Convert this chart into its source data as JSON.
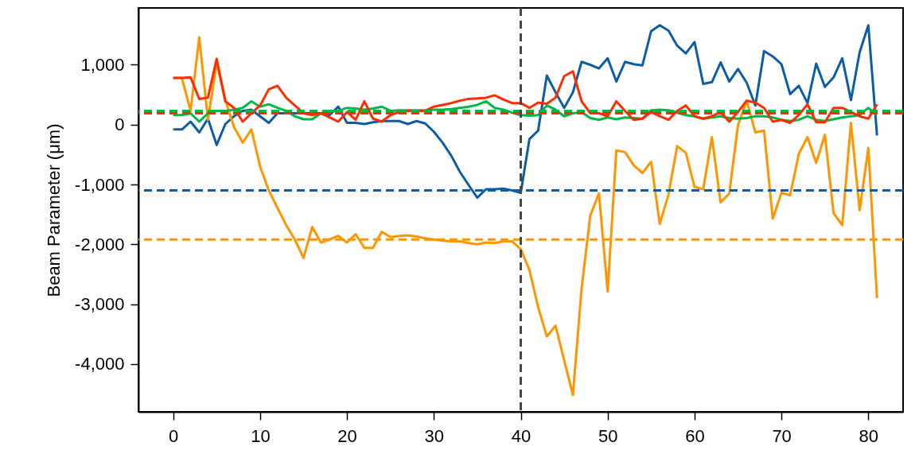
{
  "chart_data": {
    "type": "line",
    "ylabel": "Beam Parameter (μm)",
    "x": [
      0,
      1,
      2,
      3,
      4,
      5,
      6,
      7,
      8,
      9,
      10,
      11,
      12,
      13,
      14,
      15,
      16,
      17,
      18,
      19,
      20,
      21,
      22,
      23,
      24,
      25,
      26,
      27,
      28,
      29,
      30,
      31,
      32,
      33,
      34,
      35,
      36,
      37,
      38,
      39,
      40,
      41,
      42,
      43,
      44,
      45,
      46,
      47,
      48,
      49,
      50,
      51,
      52,
      53,
      54,
      55,
      56,
      57,
      58,
      59,
      60,
      61,
      62,
      63,
      64,
      65,
      66,
      67,
      68,
      69,
      70,
      71,
      72,
      73,
      74,
      75,
      76,
      77,
      78,
      79,
      80,
      81
    ],
    "series": [
      {
        "color": "#0c5da5",
        "values": [
          -80,
          -80,
          50,
          -130,
          100,
          -340,
          10,
          140,
          230,
          250,
          140,
          30,
          190,
          190,
          190,
          190,
          190,
          190,
          160,
          300,
          30,
          30,
          10,
          40,
          60,
          60,
          60,
          10,
          60,
          20,
          -120,
          -300,
          -520,
          -790,
          -1010,
          -1220,
          -1080,
          -1080,
          -1070,
          -1100,
          -1140,
          -240,
          -100,
          820,
          540,
          280,
          540,
          1050,
          1000,
          940,
          1110,
          720,
          1050,
          1010,
          990,
          1560,
          1660,
          1570,
          1320,
          1190,
          1380,
          680,
          710,
          1040,
          720,
          930,
          700,
          320,
          1230,
          1140,
          1010,
          510,
          650,
          360,
          1020,
          630,
          790,
          1110,
          410,
          1210,
          1660,
          -180
        ]
      },
      {
        "color": "#ff9500",
        "values": [
          780,
          780,
          230,
          1460,
          80,
          1030,
          410,
          -40,
          -300,
          -80,
          -700,
          -1100,
          -1390,
          -1680,
          -1920,
          -2230,
          -1710,
          -1970,
          -1920,
          -1860,
          -1970,
          -1830,
          -2060,
          -2060,
          -1790,
          -1880,
          -1860,
          -1850,
          -1870,
          -1900,
          -1920,
          -1940,
          -1950,
          -1950,
          -1980,
          -2000,
          -1970,
          -1980,
          -1950,
          -1950,
          -2080,
          -2430,
          -3050,
          -3540,
          -3360,
          -3940,
          -4520,
          -2740,
          -1520,
          -1150,
          -2790,
          -430,
          -460,
          -680,
          -810,
          -620,
          -1660,
          -1170,
          -360,
          -470,
          -1040,
          -1080,
          -210,
          -1300,
          -1150,
          -10,
          400,
          -130,
          -100,
          -1570,
          -1140,
          -1180,
          -490,
          -210,
          -640,
          -170,
          -1480,
          -1680,
          30,
          -1430,
          -390,
          -2900
        ]
      },
      {
        "color": "#00b945",
        "values": [
          160,
          160,
          190,
          50,
          190,
          230,
          230,
          250,
          280,
          390,
          300,
          340,
          280,
          230,
          140,
          90,
          90,
          190,
          230,
          230,
          280,
          270,
          250,
          270,
          300,
          230,
          240,
          240,
          240,
          240,
          250,
          250,
          260,
          280,
          300,
          330,
          390,
          280,
          250,
          200,
          160,
          150,
          160,
          320,
          250,
          140,
          190,
          210,
          110,
          80,
          120,
          90,
          120,
          110,
          100,
          240,
          250,
          240,
          200,
          160,
          140,
          100,
          120,
          140,
          110,
          100,
          110,
          140,
          140,
          120,
          80,
          60,
          80,
          140,
          80,
          60,
          90,
          120,
          140,
          160,
          280,
          160
        ]
      },
      {
        "color": "#ff2c00",
        "values": [
          780,
          780,
          790,
          430,
          450,
          1100,
          390,
          280,
          50,
          190,
          320,
          590,
          650,
          450,
          320,
          190,
          160,
          190,
          120,
          50,
          210,
          80,
          390,
          100,
          50,
          160,
          210,
          230,
          230,
          230,
          300,
          330,
          360,
          400,
          430,
          440,
          450,
          490,
          420,
          360,
          360,
          280,
          370,
          350,
          450,
          810,
          890,
          390,
          190,
          190,
          140,
          390,
          230,
          80,
          100,
          210,
          140,
          80,
          230,
          320,
          140,
          100,
          140,
          210,
          50,
          210,
          400,
          370,
          280,
          50,
          80,
          30,
          160,
          340,
          40,
          40,
          280,
          280,
          210,
          140,
          100,
          340
        ]
      }
    ],
    "ref_lines": [
      {
        "axis": "y",
        "value": -1100,
        "color": "#0c5da5",
        "line_style": "dashed"
      },
      {
        "axis": "y",
        "value": -1920,
        "color": "#ff9500",
        "line_style": "dashed"
      },
      {
        "axis": "y",
        "value": 230,
        "color": "#00b945",
        "line_style": "dashed"
      },
      {
        "axis": "y",
        "value": 190,
        "color": "#ff2c00",
        "line_style": "dashed"
      },
      {
        "axis": "x",
        "value": 40,
        "color": "#474747",
        "line_style": "dashed"
      }
    ],
    "xlim": [
      -4,
      84
    ],
    "xticks": [
      0,
      10,
      20,
      30,
      40,
      50,
      60,
      70,
      80
    ],
    "ylim": [
      -4800,
      1950
    ],
    "yticks": [
      {
        "value": -4000,
        "label": "-4,000"
      },
      {
        "value": -3000,
        "label": "-3,000"
      },
      {
        "value": -2000,
        "label": "-2,000"
      },
      {
        "value": -1000,
        "label": "-1,000"
      },
      0,
      {
        "value": 1000,
        "label": "1,000"
      }
    ],
    "grid": false,
    "marker": "none",
    "line_style": "solid"
  }
}
